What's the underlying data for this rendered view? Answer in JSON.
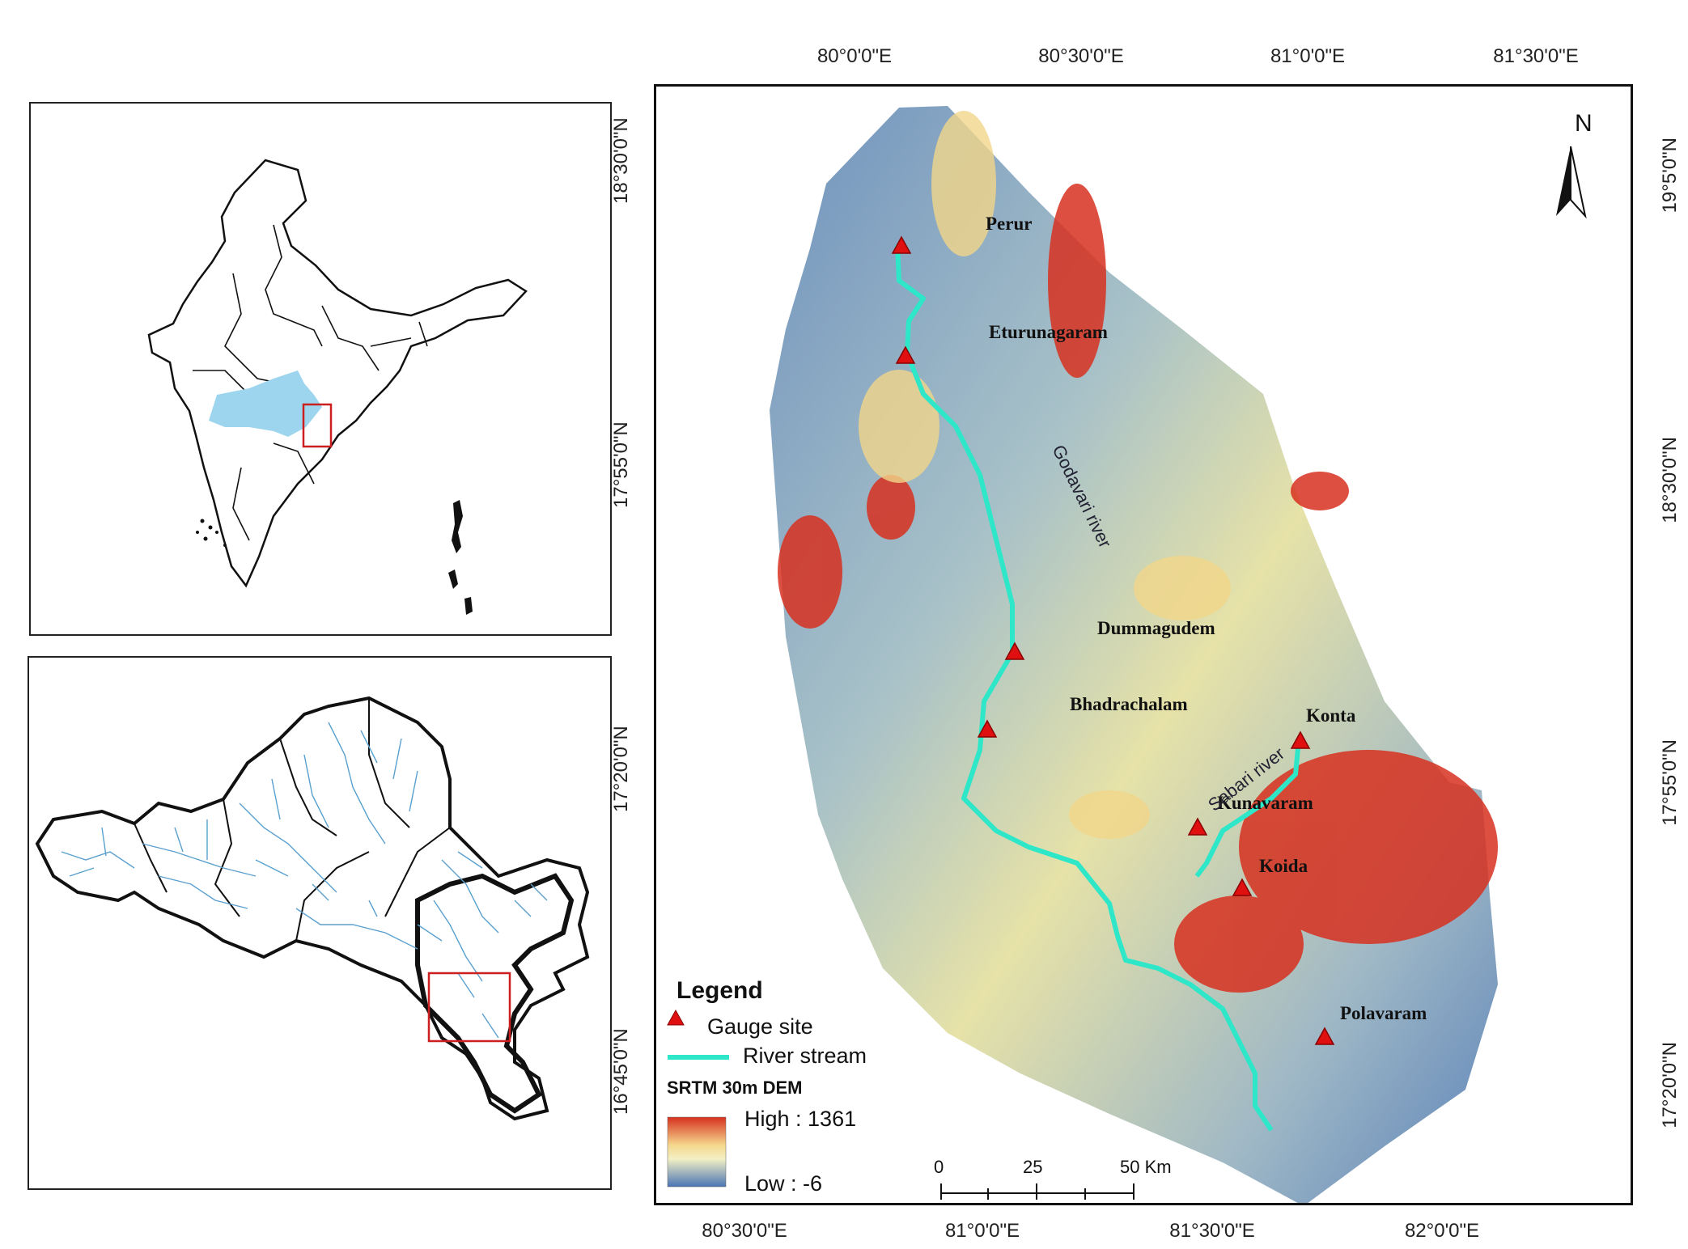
{
  "inset_india": {
    "highlight_color": "#9dd5ef",
    "box_color": "#cc1f1f"
  },
  "inset_basin": {
    "stream_color": "#5aa0cf",
    "box_color": "#cc1f1f"
  },
  "axes": {
    "top": [
      "80°0'0\"E",
      "80°30'0\"E",
      "81°0'0\"E",
      "81°30'0\"E"
    ],
    "bottom": [
      "80°30'0\"E",
      "81°0'0\"E",
      "81°30'0\"E",
      "82°0'0\"E"
    ],
    "left": [
      "18°30'0\"N",
      "17°55'0\"N",
      "17°20'0\"N",
      "16°45'0\"N"
    ],
    "right": [
      "19°5'0\"N",
      "18°30'0\"N",
      "17°55'0\"N",
      "17°20'0\"N"
    ]
  },
  "sites": [
    {
      "name": "Perur"
    },
    {
      "name": "Eturunagaram"
    },
    {
      "name": "Dummagudem"
    },
    {
      "name": "Bhadrachalam"
    },
    {
      "name": "Konta"
    },
    {
      "name": "Kunavaram"
    },
    {
      "name": "Koida"
    },
    {
      "name": "Polavaram"
    }
  ],
  "rivers": {
    "godavari": "Godavari river",
    "sabari": "Sabari river",
    "color": "#2ee6c8"
  },
  "north_arrow": "N",
  "legend": {
    "title": "Legend",
    "gauge": "Gauge site",
    "stream": "River stream",
    "dem_title": "SRTM 30m DEM",
    "high": "High : 1361",
    "low": "Low : -6",
    "gauge_color": "#e01010"
  },
  "scale_bar": {
    "labels": [
      "0",
      "25",
      "50 Km"
    ]
  }
}
